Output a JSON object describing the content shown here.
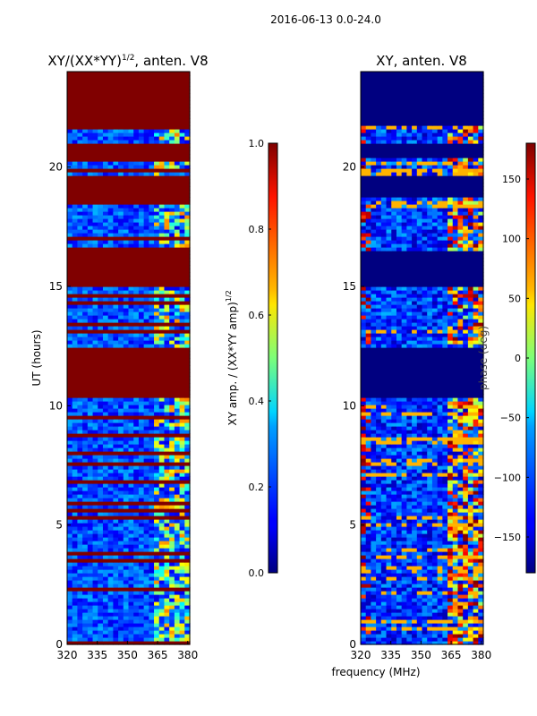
{
  "figure_title": "2016-06-13 0.0-24.0",
  "shared_xlabel": "frequency (MHz)",
  "chart_data": [
    {
      "type": "heatmap",
      "title": "XY/(XX*YY)",
      "title_exp": "1/2",
      "title_suffix": ", anten. V8",
      "xlabel": "",
      "ylabel": "UT (hours)",
      "xlim": [
        320,
        381
      ],
      "ylim": [
        0,
        24
      ],
      "xticks": [
        320,
        335,
        350,
        365,
        380
      ],
      "yticks": [
        0,
        5,
        10,
        15,
        20
      ],
      "colorbar": {
        "label": "XY amp. / (XX*YY amp)",
        "label_exp": "1/2",
        "range": [
          0.0,
          1.0
        ],
        "ticks": [
          0.0,
          0.2,
          0.4,
          0.6,
          0.8,
          1.0
        ],
        "tick_labels": [
          "0.0",
          "0.2",
          "0.4",
          "0.6",
          "0.8",
          "1.0"
        ],
        "colormap": "jet"
      },
      "flagged_value": 1.0,
      "flagged_time_ranges_hours": [
        [
          21.8,
          24.0
        ],
        [
          20.4,
          21.0
        ],
        [
          18.8,
          19.7
        ],
        [
          15.0,
          16.5
        ],
        [
          10.3,
          12.5
        ],
        [
          0.0,
          0.08
        ]
      ]
    },
    {
      "type": "heatmap",
      "title": "XY, anten. V8",
      "xlabel": "frequency (MHz)",
      "ylabel": "",
      "xlim": [
        320,
        381
      ],
      "ylim": [
        0,
        24
      ],
      "xticks": [
        320,
        335,
        350,
        365,
        380
      ],
      "yticks": [
        0,
        5,
        10,
        15,
        20
      ],
      "colorbar": {
        "label": "phase (deg)",
        "range": [
          -180,
          180
        ],
        "ticks": [
          -150,
          -100,
          -50,
          0,
          50,
          100,
          150
        ],
        "tick_labels": [
          "−150",
          "−100",
          "−50",
          "0",
          "50",
          "100",
          "150"
        ],
        "colormap": "jet"
      },
      "flagged_value": -180,
      "flagged_time_ranges_hours": [
        [
          21.8,
          24.0
        ],
        [
          20.4,
          21.0
        ],
        [
          18.8,
          19.7
        ],
        [
          15.0,
          16.5
        ],
        [
          10.3,
          12.5
        ]
      ]
    }
  ]
}
